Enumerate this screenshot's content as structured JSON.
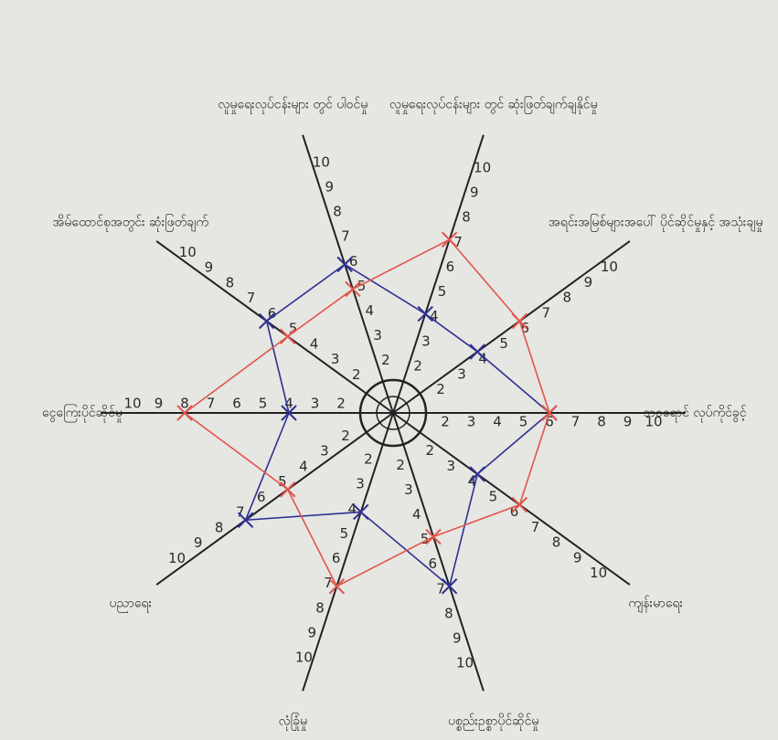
{
  "chart_data": {
    "type": "radar",
    "categories": [
      "ဘဝရောင် လုပ်ကိုင်ခွင့်",
      "အရင်းအမြစ်များအပေါ် ပိုင်ဆိုင်မှုနှင့် အသုံးချမှု",
      "လူမှုရေးလုပ်ငန်းများ တွင် ဆုံးဖြတ်ချက်ချနိုင်မှု",
      "လူမှုရေးလုပ်ငန်းများ တွင် ပါဝင်မှု",
      "အိမ်ထောင်စုအတွင်း ဆုံးဖြတ်ချက်",
      "ငွေကြေးပိုင်ဆိုင်မှု",
      "ပညာရေး",
      "လုံခြုံမှု",
      "ပစ္စည်းဥစ္စာပိုင်ဆိုင်မှု",
      "ကျန်းမာရေး"
    ],
    "series": [
      {
        "color": "#2e3192",
        "values": [
          6,
          4,
          4,
          6,
          6,
          4,
          7,
          4,
          7,
          4
        ]
      },
      {
        "color": "#e0564c",
        "values": [
          6,
          6,
          7,
          5,
          5,
          8,
          5,
          7,
          5,
          6
        ]
      }
    ],
    "rlim": [
      0,
      10
    ],
    "rticks": [
      2,
      3,
      4,
      5,
      6,
      7,
      8,
      9,
      10
    ]
  }
}
